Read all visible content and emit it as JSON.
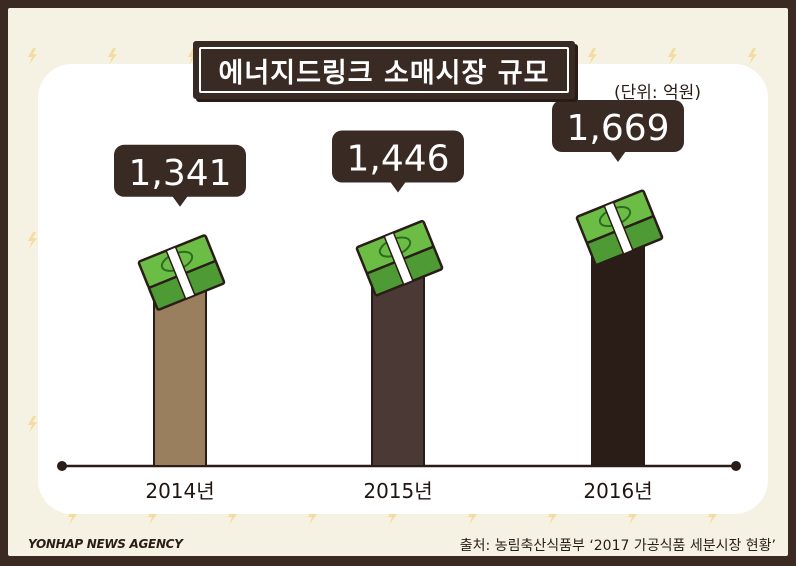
{
  "title": "에너지드링크 소매시장 규모",
  "unit": "(단위: 억원)",
  "footer": {
    "agency": "YONHAP NEWS AGENCY",
    "source": "출처: 농림축산식품부 ‘2017 가공식품 세분시장 현황’"
  },
  "colors": {
    "bar_2014": "#9a7f5f",
    "bar_2015": "#4a3934",
    "bar_2016": "#2a1d18",
    "callout": "#3a2a24",
    "money_green": "#6cbd45",
    "background": "#f6f2e3",
    "frame": "#3b2a22"
  },
  "chart_data": {
    "type": "bar",
    "categories": [
      "2014년",
      "2015년",
      "2016년"
    ],
    "values": [
      1341,
      1446,
      1669
    ],
    "value_labels": [
      "1,341",
      "1,446",
      "1,669"
    ],
    "title": "에너지드링크 소매시장 규모",
    "ylabel": "(단위: 억원)",
    "grid": false,
    "legend": "none"
  }
}
